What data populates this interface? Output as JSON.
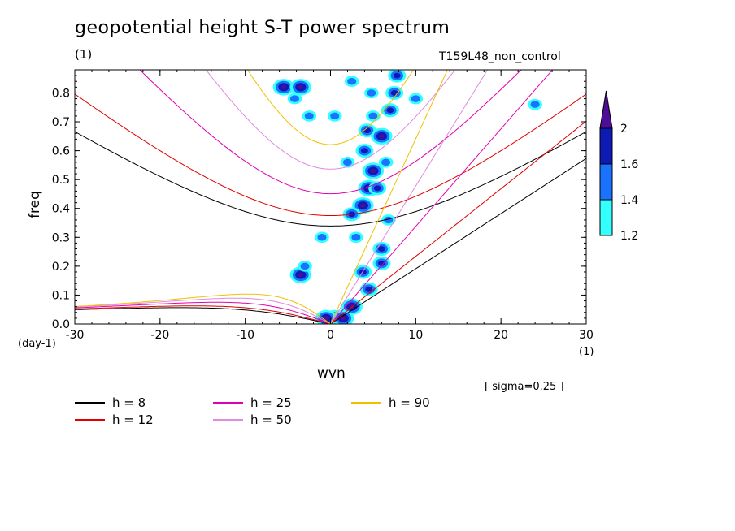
{
  "title": "geopotential height S-T power spectrum",
  "unit_left": "(1)",
  "run_name": "T159L48_non_control",
  "sigma_note": "[ sigma=0.25 ]",
  "chart_data": {
    "type": "contour",
    "xlabel": "wvn",
    "ylabel": "freq",
    "x_unit": "(1)",
    "y_unit": "(day-1)",
    "xlim": [
      -30,
      30
    ],
    "ylim": [
      0,
      0.88
    ],
    "x_ticks": [
      "-30",
      "-20",
      "-10",
      "0",
      "10",
      "20",
      "30"
    ],
    "y_ticks": [
      "0.0",
      "0.1",
      "0.2",
      "0.3",
      "0.4",
      "0.5",
      "0.6",
      "0.7",
      "0.8"
    ],
    "colorbar": {
      "levels": [
        "1.2",
        "1.4",
        "1.6",
        "2"
      ],
      "colors": [
        "#33ffff",
        "#1a73ff",
        "#0d1ab3",
        "#4d0d99"
      ]
    },
    "dispersion_curves": [
      {
        "name": "h =  8",
        "value": 8,
        "color": "#000000"
      },
      {
        "name": "h = 12",
        "value": 12,
        "color": "#e00000"
      },
      {
        "name": "h = 25",
        "value": 25,
        "color": "#e000b0"
      },
      {
        "name": "h = 50",
        "value": 50,
        "color": "#e08ae0"
      },
      {
        "name": "h = 90",
        "value": 90,
        "color": "#f0c000"
      }
    ],
    "power_blobs": [
      {
        "k": -5.5,
        "f": 0.82,
        "level": 3
      },
      {
        "k": -3.5,
        "f": 0.82,
        "level": 3
      },
      {
        "k": -4.2,
        "f": 0.78,
        "level": 1
      },
      {
        "k": 3.8,
        "f": 0.41,
        "level": 3
      },
      {
        "k": 2.5,
        "f": 0.38,
        "level": 2
      },
      {
        "k": 4.5,
        "f": 0.47,
        "level": 3
      },
      {
        "k": 5.0,
        "f": 0.53,
        "level": 3
      },
      {
        "k": 4.0,
        "f": 0.6,
        "level": 2
      },
      {
        "k": 4.3,
        "f": 0.67,
        "level": 2
      },
      {
        "k": 6.0,
        "f": 0.65,
        "level": 3
      },
      {
        "k": 7.0,
        "f": 0.74,
        "level": 2
      },
      {
        "k": 7.5,
        "f": 0.8,
        "level": 2
      },
      {
        "k": 7.8,
        "f": 0.86,
        "level": 2
      },
      {
        "k": 5.5,
        "f": 0.47,
        "level": 2
      },
      {
        "k": 3.0,
        "f": 0.3,
        "level": 1
      },
      {
        "k": 3.8,
        "f": 0.18,
        "level": 2
      },
      {
        "k": -3.5,
        "f": 0.17,
        "level": 3
      },
      {
        "k": -1.0,
        "f": 0.3,
        "level": 1
      },
      {
        "k": -3.0,
        "f": 0.2,
        "level": 1
      },
      {
        "k": 6.0,
        "f": 0.26,
        "level": 2
      },
      {
        "k": 6.0,
        "f": 0.21,
        "level": 2
      },
      {
        "k": 4.5,
        "f": 0.12,
        "level": 2
      },
      {
        "k": 2.5,
        "f": 0.06,
        "level": 3
      },
      {
        "k": 0.5,
        "f": 0.02,
        "level": 3
      },
      {
        "k": -0.5,
        "f": 0.02,
        "level": 3
      },
      {
        "k": 1.5,
        "f": 0.02,
        "level": 3
      },
      {
        "k": 6.8,
        "f": 0.36,
        "level": 1
      },
      {
        "k": 2.0,
        "f": 0.56,
        "level": 1
      },
      {
        "k": 5.0,
        "f": 0.72,
        "level": 1
      },
      {
        "k": 6.5,
        "f": 0.56,
        "level": 1
      },
      {
        "k": -2.5,
        "f": 0.72,
        "level": 1
      },
      {
        "k": 0.5,
        "f": 0.72,
        "level": 1
      },
      {
        "k": 4.8,
        "f": 0.8,
        "level": 1
      },
      {
        "k": 10.0,
        "f": 0.78,
        "level": 1
      },
      {
        "k": 24.0,
        "f": 0.76,
        "level": 1
      },
      {
        "k": 2.5,
        "f": 0.84,
        "level": 1
      }
    ]
  }
}
